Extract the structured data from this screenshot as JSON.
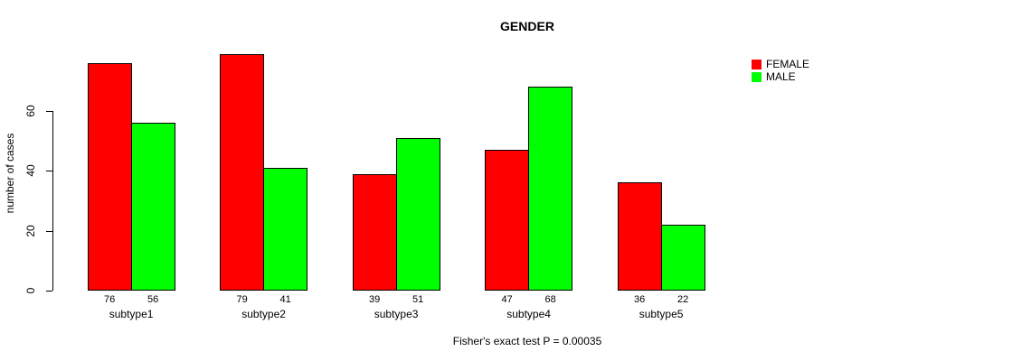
{
  "figure": {
    "title": "GENDER",
    "caption": "Fisher's exact test P = 0.00035"
  },
  "chart_data": {
    "type": "bar",
    "title": "GENDER",
    "xlabel": "",
    "ylabel": "number of cases",
    "categories": [
      "subtype1",
      "subtype2",
      "subtype3",
      "subtype4",
      "subtype5"
    ],
    "series": [
      {
        "name": "FEMALE",
        "color": "#FF0000",
        "values": [
          76,
          79,
          39,
          47,
          36
        ]
      },
      {
        "name": "MALE",
        "color": "#00FF00",
        "values": [
          56,
          41,
          51,
          68,
          22
        ]
      }
    ],
    "yticks": [
      0,
      20,
      40,
      60
    ],
    "ylim": [
      0,
      79
    ],
    "grid": false,
    "bar_value_labels": true,
    "legend_position": "top-right",
    "annotation": "Fisher's exact test P = 0.00035"
  }
}
